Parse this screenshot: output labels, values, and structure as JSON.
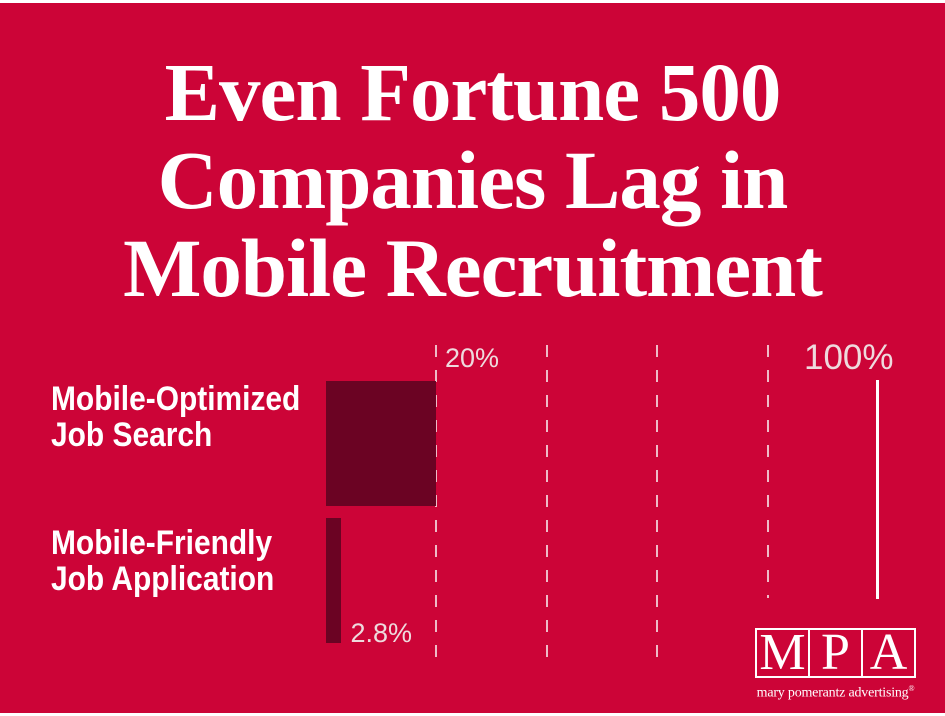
{
  "title": {
    "text": "Even Fortune 500 Companies Lag in Mobile Recruitment",
    "lines": [
      "Even Fortune 500",
      "Companies Lag in",
      "Mobile Recruitment"
    ]
  },
  "chart_data": {
    "type": "bar",
    "orientation": "horizontal",
    "title": "Even Fortune 500 Companies Lag in Mobile Recruitment",
    "categories": [
      "Mobile-Optimized\nJob Search",
      "Mobile-Friendly\nJob Application"
    ],
    "values": [
      20,
      2.8
    ],
    "value_labels": [
      "",
      "2.8%"
    ],
    "unit": "%",
    "xlabel": "",
    "ylabel": "",
    "xlim": [
      0,
      100
    ],
    "gridlines_dashed_pct": [
      20,
      40,
      60,
      80
    ],
    "solid_line_pct": 100,
    "tick_labels": [
      {
        "pct": 20,
        "text": "20%"
      },
      {
        "pct": 100,
        "text": "100%"
      }
    ],
    "grid": true,
    "legend": false
  },
  "logo": {
    "letters": [
      "M",
      "P",
      "A"
    ],
    "tagline": "mary pomerantz advertising",
    "registered_mark": "®"
  },
  "colors": {
    "background": "#cc0437",
    "bar": "#6b0323",
    "light_label": "#eedadd",
    "white": "#ffffff"
  }
}
